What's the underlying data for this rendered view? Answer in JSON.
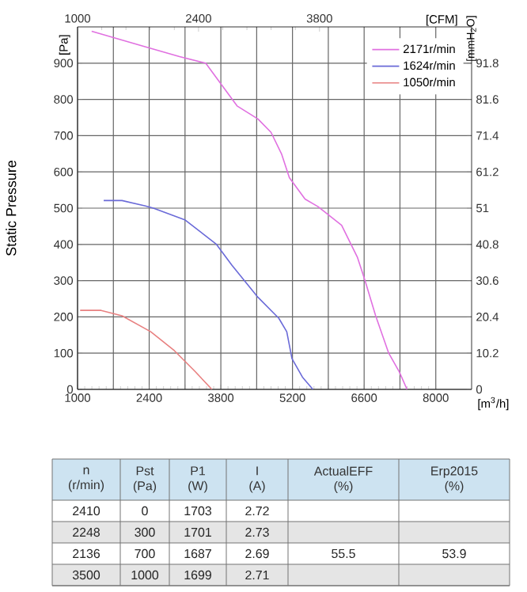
{
  "chart_data": {
    "type": "line",
    "ylabel": "Static Pressure",
    "xlabel": "[m$^{3}$/h]",
    "x2label": "[CFM]",
    "y2label": "[mmH$_{2}$O]",
    "xlim": [
      1000,
      8700
    ],
    "xticks": [
      1000,
      {
        "value": 1700,
        "label": null
      },
      2400,
      {
        "value": 3100,
        "label": null
      },
      3800,
      {
        "value": 4500,
        "label": null
      },
      5200,
      {
        "value": 5900,
        "label": null
      },
      6600,
      {
        "value": 7300,
        "label": null
      },
      8000
    ],
    "ylim": [
      0,
      1000
    ],
    "yticks": [
      0,
      100,
      200,
      300,
      400,
      500,
      600,
      700,
      800,
      900
    ],
    "x2lim": [
      1000,
      5560
    ],
    "x2ticks": [
      1000,
      2400,
      3800
    ],
    "y2lim": [
      0,
      102
    ],
    "y2ticks": [
      0,
      10.2,
      20.4,
      30.6,
      40.8,
      51,
      61.2,
      71.4,
      81.6,
      91.8
    ],
    "grid": true,
    "legend": "top right",
    "series": [
      {
        "name": "2171r/min",
        "color": "#e070e0",
        "x": [
          1276,
          2277,
          2992,
          3504,
          3810,
          4117,
          4526,
          4781,
          4985,
          5139,
          5445,
          5700,
          6160,
          6467,
          6620,
          6825,
          7080,
          7285,
          7438
        ],
        "values": [
          988,
          947,
          918,
          900,
          841,
          782,
          746,
          709,
          650,
          584,
          525,
          504,
          453,
          365,
          299,
          203,
          100,
          49,
          0
        ]
      },
      {
        "name": "1624r/min",
        "color": "#6a6ad8",
        "x": [
          1511,
          1868,
          2328,
          2482,
          3095,
          3708,
          4015,
          4526,
          4934,
          5088,
          5190,
          5394,
          5599
        ],
        "values": [
          521,
          521,
          506,
          500,
          468,
          401,
          343,
          254,
          196,
          159,
          85,
          34,
          0
        ]
      },
      {
        "name": "1050r/min",
        "color": "#e88080",
        "x": [
          1051,
          1460,
          1868,
          2430,
          2890,
          3299,
          3626
        ],
        "values": [
          218,
          218,
          203,
          159,
          107,
          49,
          0
        ]
      }
    ],
    "annotations": [
      "[Pa]",
      "n (r/min)",
      "Pst (Pa)",
      "P1 (W)",
      "I (A)",
      "ActualEFF (%)",
      "Erp2015 (%)",
      "2410",
      "0",
      "1703",
      "2.72",
      "2248",
      "300",
      "1701",
      "2.73",
      "2136",
      "700",
      "1687",
      "2.69",
      "55.5",
      "53.9",
      "3500",
      "1000",
      "1699",
      "2.71"
    ]
  }
}
